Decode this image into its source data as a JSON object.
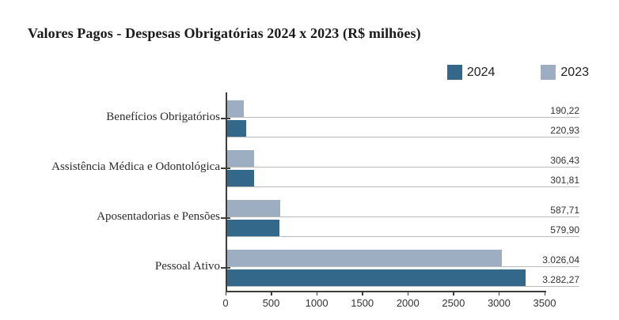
{
  "chart_data": {
    "type": "bar",
    "orientation": "horizontal",
    "title": "Valores Pagos - Despesas Obrigatórias 2024 x 2023 (R$ milhões)",
    "categories": [
      "Benefícios Obrigatórios",
      "Assistência Médica e Odontológica",
      "Aposentadorias e Pensões",
      "Pessoal Ativo"
    ],
    "series": [
      {
        "name": "2024",
        "color": "#34688b",
        "values": [
          220.93,
          301.81,
          579.9,
          3282.27
        ],
        "value_labels": [
          "220,93",
          "301,81",
          "579,90",
          "3.282,27"
        ]
      },
      {
        "name": "2023",
        "color": "#9dadc2",
        "values": [
          190.22,
          306.43,
          587.71,
          3026.04
        ],
        "value_labels": [
          "190,22",
          "306,43",
          "587,71",
          "3.026,04"
        ]
      }
    ],
    "row_order_top_to_bottom": [
      "2023",
      "2024"
    ],
    "x_axis": {
      "min": 0,
      "max": 3500,
      "ticks": [
        0,
        500,
        1000,
        1500,
        2000,
        2500,
        3000,
        3500
      ]
    },
    "legend_position": "top-right",
    "value_labels_shown": true,
    "grid": "horizontal-lines-per-bar",
    "colors": {
      "axis": "#3d3d3d",
      "gridline": "#bbbbbb",
      "text": "#333333"
    }
  }
}
